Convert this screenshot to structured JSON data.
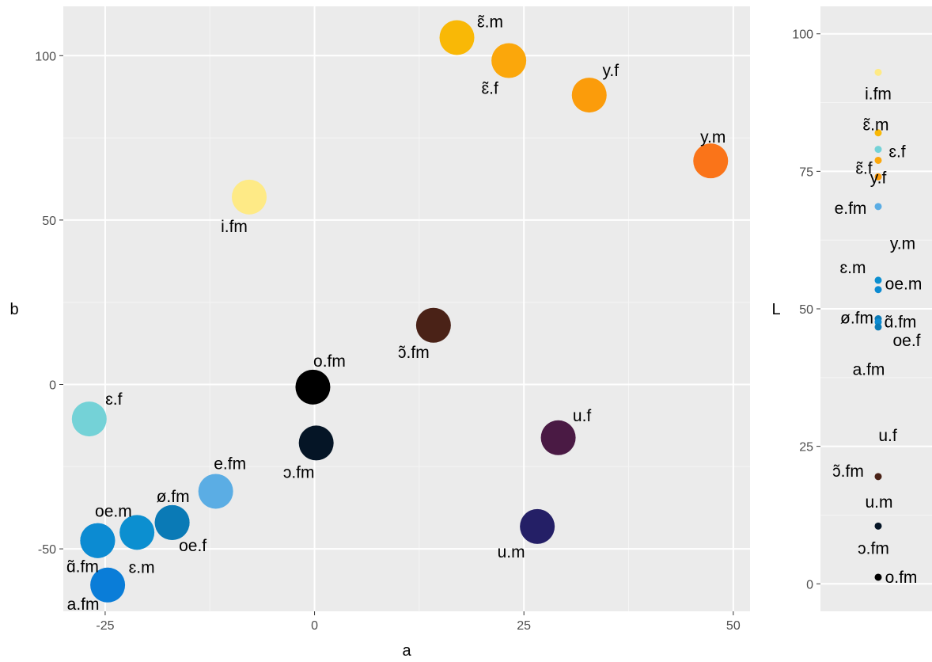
{
  "chart_data": [
    {
      "type": "scatter",
      "xlabel": "a",
      "ylabel": "b",
      "xlim": [
        -30,
        52
      ],
      "ylim": [
        -69,
        115
      ],
      "x_ticks": [
        -25,
        0,
        25,
        50
      ],
      "y_ticks": [
        -50,
        0,
        50,
        100
      ],
      "x_tick_labels": [
        "-25",
        "0",
        "25",
        "50"
      ],
      "y_tick_labels": [
        "-50",
        "0",
        "50",
        "100"
      ],
      "grid": true,
      "legend": "none",
      "points": [
        {
          "label": "ɛ̃.m",
          "a": 17,
          "b": 105.5,
          "color": "#F9B806"
        },
        {
          "label": "ɛ̃.f",
          "a": 23.2,
          "b": 98.5,
          "color": "#FBA70B"
        },
        {
          "label": "y.f",
          "a": 32.8,
          "b": 88,
          "color": "#FB9C0B"
        },
        {
          "label": "y.m",
          "a": 47.3,
          "b": 68,
          "color": "#FA7419"
        },
        {
          "label": "i.fm",
          "a": -7.8,
          "b": 57,
          "color": "#FEEA86"
        },
        {
          "label": "ɔ̃.fm",
          "a": 14.2,
          "b": 18,
          "color": "#4A2217"
        },
        {
          "label": "o.fm",
          "a": -0.2,
          "b": -0.8,
          "color": "#000000"
        },
        {
          "label": "ɔ.fm",
          "a": 0.2,
          "b": -17.8,
          "color": "#051526"
        },
        {
          "label": "ɛ.f",
          "a": -26.9,
          "b": -10.5,
          "color": "#74D2D7"
        },
        {
          "label": "u.f",
          "a": 29.1,
          "b": -16.2,
          "color": "#4A1A44"
        },
        {
          "label": "e.fm",
          "a": -11.8,
          "b": -32.5,
          "color": "#5BADE4"
        },
        {
          "label": "ø.fm",
          "a": -17,
          "b": -42,
          "color": "#0A7AB6"
        },
        {
          "label": "oe.f",
          "a": -17,
          "b": -42,
          "color": "#0A7AB6"
        },
        {
          "label": "ɛ.m",
          "a": -21.2,
          "b": -45,
          "color": "#0C8FD0"
        },
        {
          "label": "oe.m",
          "a": -25.9,
          "b": -47.5,
          "color": "#0C8BD2"
        },
        {
          "label": "ɑ̃.fm",
          "a": -25.9,
          "b": -47.5,
          "color": "#0C8BD2"
        },
        {
          "label": "u.m",
          "a": 26.6,
          "b": -43.2,
          "color": "#241F66"
        },
        {
          "label": "a.fm",
          "a": -24.7,
          "b": -61,
          "color": "#0A7DD8"
        }
      ]
    },
    {
      "type": "scatter",
      "ylabel": "L",
      "ylim": [
        -5,
        105
      ],
      "y_ticks": [
        0,
        25,
        50,
        75,
        100
      ],
      "y_tick_labels": [
        "0",
        "25",
        "50",
        "75",
        "100"
      ],
      "grid": true,
      "legend": "none",
      "points": [
        {
          "label": "i.fm",
          "L": 93,
          "color": "#FEEA86"
        },
        {
          "label": "ɛ̃.m",
          "L": 82,
          "color": "#F9B806"
        },
        {
          "label": "ɛ.f",
          "L": 79,
          "color": "#74D2D7"
        },
        {
          "label": "ɛ̃.f",
          "L": 77,
          "color": "#FBA70B"
        },
        {
          "label": "y.f",
          "L": 74,
          "color": "#FB9C0B"
        },
        {
          "label": "e.fm",
          "L": 68.6,
          "color": "#5BADE4"
        },
        {
          "label": "y.m",
          "L": 65.2,
          "color": "#FA7419"
        },
        {
          "label": "ɛ.m",
          "L": 55.2,
          "color": "#0C8FD0"
        },
        {
          "label": "oe.m",
          "L": 53.5,
          "color": "#0C8BD2"
        },
        {
          "label": "ø.fm",
          "L": 48.2,
          "color": "#0A7AB6"
        },
        {
          "label": "ɑ̃.fm",
          "L": 47.6,
          "color": "#0C8BD2"
        },
        {
          "label": "oe.f",
          "L": 46.7,
          "color": "#0A7AB6"
        },
        {
          "label": "a.fm",
          "L": 46.5,
          "color": "#0A7DD8"
        },
        {
          "label": "u.f",
          "L": 19.6,
          "color": "#4A1A44"
        },
        {
          "label": "ɔ̃.fm",
          "L": 19.5,
          "color": "#4A2217"
        },
        {
          "label": "u.m",
          "L": 19.3,
          "color": "#241F66"
        },
        {
          "label": "ɔ.fm",
          "L": 10.5,
          "color": "#051526"
        },
        {
          "label": "o.fm",
          "L": 1.2,
          "color": "#000000"
        }
      ]
    }
  ],
  "colors": {
    "panel_background": "#EBEBEB",
    "grid_major": "#FFFFFF",
    "grid_minor": "#F5F5F5",
    "tick_text": "#4D4D4D",
    "tick_mark": "#333333"
  }
}
